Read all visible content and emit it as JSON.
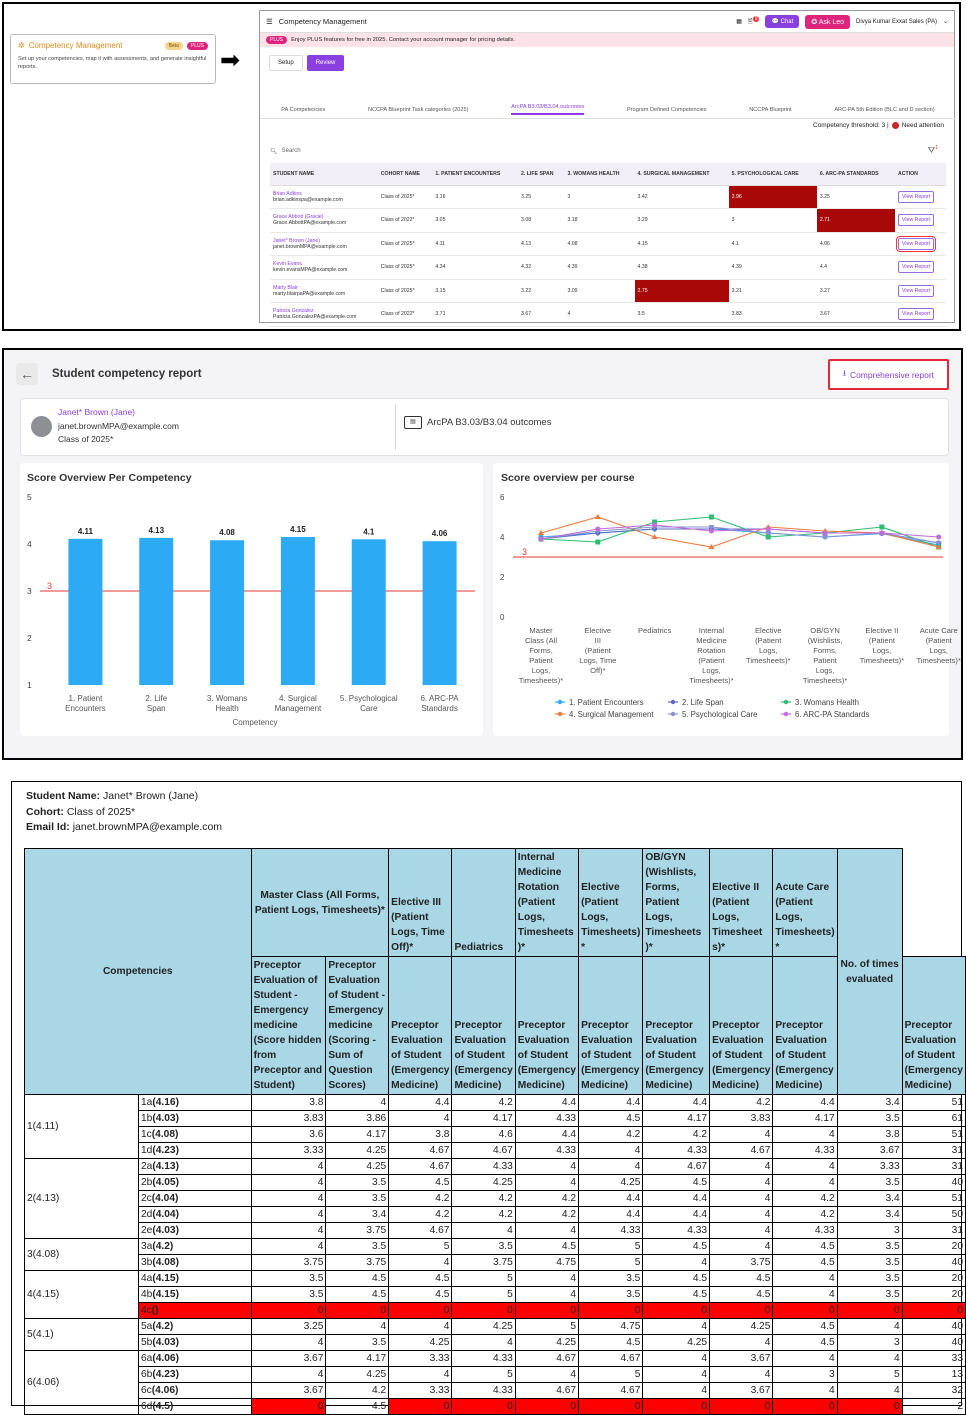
{
  "card": {
    "title": "Competency Management",
    "beta": "Beta",
    "plus": "PLUS",
    "desc": "Set up your competencies, map it with assessments, and generate insightful reports."
  },
  "app": {
    "title": "Competency Management",
    "chat": "Chat",
    "ask": "Ask Leo",
    "notif": "9",
    "user": "Divya Kumar  Exxat Sales (PA)",
    "banner_badge": "PLUS",
    "banner": "Enjoy PLUS features for free in 2025. Contact your account manager for pricing details.",
    "steps": [
      "Setup",
      "Review"
    ],
    "tabs": [
      "PA Competencies",
      "NCCPA Blueprint Task categories (2025)",
      "ArcPA B3.03/B3.04 outcomes",
      "Program Defined Competencies",
      "NCCPA Blueprint",
      "ARC-PA 5th Edition (BLC and D section)"
    ],
    "threshold": "Competency threshold: 3 |",
    "need": "Need attention",
    "search": "Search",
    "filter_count": "1",
    "headers": [
      "STUDENT NAME",
      "COHORT NAME",
      "1. PATIENT ENCOUNTERS",
      "2. LIFE SPAN",
      "3. WOMANS HEALTH",
      "4. SURGICAL MANAGEMENT",
      "5. PSYCHOLOGICAL CARE",
      "6. ARC-PA STANDARDS",
      "ACTION"
    ],
    "view": "View Report",
    "rows": [
      {
        "name": "Brian Adkins",
        "email": "brian.adkinspa@example.com",
        "cohort": "Class of 2025*",
        "v": [
          "3.16",
          "3.25",
          "3",
          "3.42",
          "2.96",
          "3.25"
        ],
        "hl": [
          false,
          false,
          false,
          false,
          true,
          false
        ]
      },
      {
        "name": "Grace Abbott (Gracie)",
        "email": "Grace.AbbottPA@example.com",
        "cohort": "Class of 2022*",
        "v": [
          "3.05",
          "3.08",
          "3.18",
          "3.29",
          "3",
          "2.71"
        ],
        "hl": [
          false,
          false,
          false,
          false,
          false,
          true
        ]
      },
      {
        "name": "Janet* Brown (Jane)",
        "email": "janet.brownMPA@example.com",
        "cohort": "Class of 2025*",
        "v": [
          "4.11",
          "4.13",
          "4.08",
          "4.15",
          "4.1",
          "4.06"
        ],
        "hl": [
          false,
          false,
          false,
          false,
          false,
          false
        ]
      },
      {
        "name": "Kevin Evans",
        "email": "kevin.evansMPA@example.com",
        "cohort": "Class of 2025*",
        "v": [
          "4.34",
          "4.32",
          "4.39",
          "4.38",
          "4.39",
          "4.4"
        ],
        "hl": [
          false,
          false,
          false,
          false,
          false,
          false
        ]
      },
      {
        "name": "Marty Blair",
        "email": "marty.blairpaPA@example.com",
        "cohort": "Class of 2025*",
        "v": [
          "3.15",
          "3.22",
          "3.09",
          "2.75",
          "3.21",
          "3.27"
        ],
        "hl": [
          false,
          false,
          false,
          true,
          false,
          false
        ]
      },
      {
        "name": "Patricia Gonzalez",
        "email": "Patricia.GonzalezPA@example.com",
        "cohort": "Class of 2022*",
        "v": [
          "3.71",
          "3.67",
          "4",
          "3.5",
          "3.83",
          "3.67"
        ],
        "hl": [
          false,
          false,
          false,
          false,
          false,
          false
        ]
      }
    ]
  },
  "report": {
    "title": "Student competency report",
    "comprehensive": "Comprehensive report",
    "student_name": "Janet* Brown (Jane)",
    "student_email": "janet.brownMPA@example.com",
    "student_cohort": "Class of 2025*",
    "outcome": "ArcPA B3.03/B3.04 outcomes"
  },
  "chart_data": [
    {
      "type": "bar",
      "title": "Score Overview Per Competency",
      "categories": [
        "1. Patient Encounters",
        "2. Life Span",
        "3. Womans Health",
        "4. Surgical Management",
        "5. Psychological Care",
        "6. ARC-PA Standards"
      ],
      "values": [
        4.11,
        4.13,
        4.08,
        4.15,
        4.1,
        4.06
      ],
      "labels": [
        "4.11",
        "4.13",
        "4.08",
        "4.15",
        "4.1",
        "4.06"
      ],
      "xlabel": "Competency",
      "ylim": [
        1,
        5
      ],
      "yticks": [
        "1",
        "2",
        "3",
        "4",
        "5"
      ],
      "threshold": 3,
      "threshold_label": "3",
      "color": "#2daaf4"
    },
    {
      "type": "line",
      "title": "Score overview per course",
      "categories": [
        "Master Class (All Forms, Patient Logs, Timesheets)*",
        "Elective III (Patient Logs, Time Off)*",
        "Pediatrics",
        "Internal Medicine Rotation (Patient Logs, Timesheets)*",
        "Elective (Patient Logs, Timesheets)*",
        "OB/GYN (Wishlists, Forms, Patient Logs, Timesheets)*",
        "Elective II (Patient Logs, Timesheets)*",
        "Acute Care (Patient Logs, Timesheets)*"
      ],
      "ylim": [
        0,
        6
      ],
      "yticks": [
        "0",
        "2",
        "4",
        "6"
      ],
      "threshold": 3,
      "threshold_label": "3",
      "series": [
        {
          "name": "1. Patient Encounters",
          "color": "#2daaf4",
          "marker": "circle",
          "values": [
            4,
            4.2,
            4.4,
            4.4,
            4.2,
            4,
            4.17,
            3.6
          ]
        },
        {
          "name": "2. Life Span",
          "color": "#5b6bc0",
          "marker": "diamond",
          "values": [
            3.9,
            4.2,
            4.4,
            4.4,
            4.4,
            4.2,
            4.2,
            3.7
          ]
        },
        {
          "name": "3. Womans Health",
          "color": "#2dbd6e",
          "marker": "square",
          "values": [
            3.9,
            3.75,
            4.75,
            5,
            4,
            4.2,
            4.5,
            3.5
          ]
        },
        {
          "name": "4. Surgical Management",
          "color": "#f07b3f",
          "marker": "triangle",
          "values": [
            4.2,
            5,
            4,
            3.5,
            4.5,
            4.3,
            4.2,
            3.5
          ]
        },
        {
          "name": "5. Psychological Care",
          "color": "#8a92d4",
          "marker": "triangle-down",
          "values": [
            3.9,
            4.3,
            4.5,
            4.5,
            4.2,
            4,
            4.2,
            3.7
          ]
        },
        {
          "name": "6. ARC-PA Standards",
          "color": "#c36bd8",
          "marker": "circle",
          "values": [
            3.9,
            4.4,
            4.6,
            4.3,
            4.4,
            4.2,
            4.2,
            4
          ]
        }
      ]
    }
  ],
  "export": {
    "name_label": "Student Name:",
    "name": "Janet* Brown  (Jane)",
    "cohort_label": "Cohort:",
    "cohort": "Class of 2025*",
    "email_label": "Email Id:",
    "email": "janet.brownMPA@example.com",
    "competencies_header": "Competencies",
    "times_header": "No. of times evaluated",
    "courses": [
      "Master Class (All Forms, Patient Logs, Timesheets)*",
      "Elective III (Patient Logs, Time Off)*",
      "Pediatrics",
      "Internal Medicine Rotation (Patient Logs, Timesheets )*",
      "Elective (Patient Logs, Timesheets) *",
      "OB/GYN (Wishlists, Forms, Patient Logs, Timesheets )*",
      "Elective II (Patient Logs, Timesheet s)*",
      "Acute Care (Patient Logs, Timesheets) *"
    ],
    "evals": [
      "Preceptor Evaluation of Student - Emergency medicine (Score hidden from Preceptor and Student)",
      "Preceptor Evaluation of Student - Emergency medicine (Scoring - Sum of Question Scores)",
      "Preceptor Evaluation of Student (Emergency Medicine)",
      "Preceptor Evaluation of Student (Emergency Medicine)",
      "Preceptor Evaluation of Student (Emergency Medicine)",
      "Preceptor Evaluation of Student (Emergency Medicine)",
      "Preceptor Evaluation of Student (Emergency Medicine)",
      "Preceptor Evaluation of Student (Emergency Medicine)",
      "Preceptor Evaluation of Student (Emergency Medicine)",
      "Preceptor Evaluation of Student (Emergency Medicine)"
    ],
    "groups": [
      {
        "label": "1(4.11)",
        "rows": [
          {
            "sub": "1a",
            "score": "(4.16)",
            "v": [
              "3.8",
              "4",
              "4.4",
              "4.2",
              "4.4",
              "4.4",
              "4.4",
              "4.2",
              "4.4",
              "3.4",
              "51"
            ]
          },
          {
            "sub": "1b",
            "score": "(4.03)",
            "v": [
              "3.83",
              "3.86",
              "4",
              "4.17",
              "4.33",
              "4.5",
              "4.17",
              "3.83",
              "4.17",
              "3.5",
              "61"
            ]
          },
          {
            "sub": "1c",
            "score": "(4.08)",
            "v": [
              "3.6",
              "4.17",
              "3.8",
              "4.6",
              "4.4",
              "4.2",
              "4.2",
              "4",
              "4",
              "3.8",
              "51"
            ]
          },
          {
            "sub": "1d",
            "score": "(4.23)",
            "v": [
              "3.33",
              "4.25",
              "4.67",
              "4.67",
              "4.33",
              "4",
              "4.33",
              "4.67",
              "4.33",
              "3.67",
              "31"
            ]
          }
        ]
      },
      {
        "label": "2(4.13)",
        "rows": [
          {
            "sub": "2a",
            "score": "(4.13)",
            "v": [
              "4",
              "4.25",
              "4.67",
              "4.33",
              "4",
              "4",
              "4.67",
              "4",
              "4",
              "3.33",
              "31"
            ]
          },
          {
            "sub": "2b",
            "score": "(4.05)",
            "v": [
              "4",
              "3.5",
              "4.5",
              "4.25",
              "4",
              "4.25",
              "4.5",
              "4",
              "4",
              "3.5",
              "40"
            ]
          },
          {
            "sub": "2c",
            "score": "(4.04)",
            "v": [
              "4",
              "3.5",
              "4.2",
              "4.2",
              "4.2",
              "4.4",
              "4.4",
              "4",
              "4.2",
              "3.4",
              "51"
            ]
          },
          {
            "sub": "2d",
            "score": "(4.04)",
            "v": [
              "4",
              "3.4",
              "4.2",
              "4.2",
              "4.2",
              "4.4",
              "4.4",
              "4",
              "4.2",
              "3.4",
              "50"
            ]
          },
          {
            "sub": "2e",
            "score": "(4.03)",
            "v": [
              "4",
              "3.75",
              "4.67",
              "4",
              "4",
              "4.33",
              "4.33",
              "4",
              "4.33",
              "3",
              "31"
            ]
          }
        ]
      },
      {
        "label": "3(4.08)",
        "rows": [
          {
            "sub": "3a",
            "score": "(4.2)",
            "v": [
              "4",
              "3.5",
              "5",
              "3.5",
              "4.5",
              "5",
              "4.5",
              "4",
              "4.5",
              "3.5",
              "20"
            ]
          },
          {
            "sub": "3b",
            "score": "(4.08)",
            "v": [
              "3.75",
              "3.75",
              "4",
              "3.75",
              "4.75",
              "5",
              "4",
              "3.75",
              "4.5",
              "3.5",
              "40"
            ]
          }
        ]
      },
      {
        "label": "4(4.15)",
        "rows": [
          {
            "sub": "4a",
            "score": "(4.15)",
            "v": [
              "3.5",
              "4.5",
              "4.5",
              "5",
              "4",
              "3.5",
              "4.5",
              "4.5",
              "4",
              "3.5",
              "20"
            ]
          },
          {
            "sub": "4b",
            "score": "(4.15)",
            "v": [
              "3.5",
              "4.5",
              "4.5",
              "5",
              "4",
              "3.5",
              "4.5",
              "4.5",
              "4",
              "3.5",
              "20"
            ]
          },
          {
            "sub": "4c",
            "score": "()",
            "v": [
              "0",
              "0",
              "0",
              "0",
              "0",
              "0",
              "0",
              "0",
              "0",
              "0",
              "0"
            ],
            "red": true
          }
        ]
      },
      {
        "label": "5(4.1)",
        "rows": [
          {
            "sub": "5a",
            "score": "(4.2)",
            "v": [
              "3.25",
              "4",
              "4",
              "4.25",
              "5",
              "4.75",
              "4",
              "4.25",
              "4.5",
              "4",
              "40"
            ]
          },
          {
            "sub": "5b",
            "score": "(4.03)",
            "v": [
              "4",
              "3.5",
              "4.25",
              "4",
              "4.25",
              "4.5",
              "4.25",
              "4",
              "4.5",
              "3",
              "40"
            ]
          }
        ]
      },
      {
        "label": "6(4.06)",
        "rows": [
          {
            "sub": "6a",
            "score": "(4.06)",
            "v": [
              "3.67",
              "4.17",
              "3.33",
              "4.33",
              "4.67",
              "4.67",
              "4",
              "3.67",
              "4",
              "4",
              "33"
            ]
          },
          {
            "sub": "6b",
            "score": "(4.23)",
            "v": [
              "4",
              "4.25",
              "4",
              "5",
              "4",
              "5",
              "4",
              "4",
              "3",
              "5",
              "13"
            ]
          },
          {
            "sub": "6c",
            "score": "(4.06)",
            "v": [
              "3.67",
              "4.2",
              "3.33",
              "4.33",
              "4.67",
              "4.67",
              "4",
              "3.67",
              "4",
              "4",
              "32"
            ]
          },
          {
            "sub": "6d",
            "score": "(4.5)",
            "v": [
              "0",
              "4.5",
              "0",
              "0",
              "0",
              "0",
              "0",
              "0",
              "0",
              "0",
              "2"
            ],
            "redcells": [
              0,
              2,
              3,
              4,
              5,
              6,
              7,
              8,
              9
            ]
          }
        ]
      }
    ]
  }
}
